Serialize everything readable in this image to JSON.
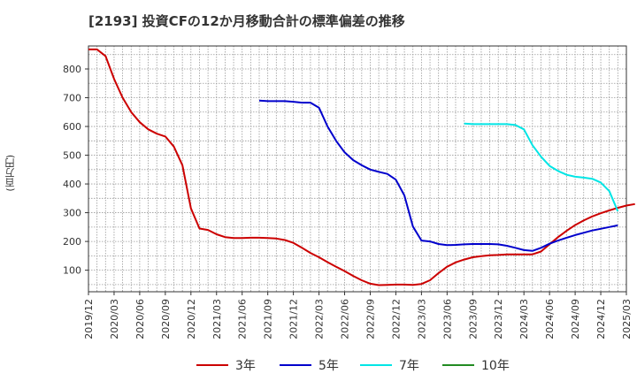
{
  "chart_data": {
    "type": "line",
    "title": "[2193]  投資CFの12か月移動合計の標準偏差の推移",
    "ylabel": "(百万円)",
    "xlabel": "",
    "ylim": [
      25,
      880
    ],
    "yticks": [
      100,
      200,
      300,
      400,
      500,
      600,
      700,
      800
    ],
    "x_ticks": [
      "2019/12",
      "2020/03",
      "2020/06",
      "2020/09",
      "2020/12",
      "2021/03",
      "2021/06",
      "2021/09",
      "2021/12",
      "2022/03",
      "2022/06",
      "2022/09",
      "2022/12",
      "2023/03",
      "2023/06",
      "2023/09",
      "2023/12",
      "2024/03",
      "2024/06",
      "2024/09",
      "2024/12",
      "2025/03"
    ],
    "grid": true,
    "legend_position": "bottom",
    "series": [
      {
        "name": "3年",
        "color": "#cc0000",
        "start_month": 0,
        "values": [
          868,
          868,
          845,
          765,
          700,
          650,
          615,
          590,
          575,
          565,
          530,
          465,
          315,
          245,
          240,
          225,
          215,
          212,
          212,
          213,
          213,
          212,
          210,
          205,
          195,
          178,
          160,
          145,
          128,
          112,
          97,
          80,
          65,
          53,
          48,
          49,
          50,
          50,
          49,
          52,
          65,
          90,
          112,
          127,
          137,
          145,
          149,
          152,
          153,
          155,
          155,
          155,
          155,
          165,
          190,
          215,
          237,
          257,
          273,
          287,
          298,
          308,
          317,
          325,
          330
        ]
      },
      {
        "name": "5年",
        "color": "#0000cc",
        "start_month": 20,
        "values": [
          690,
          688,
          688,
          688,
          686,
          683,
          683,
          665,
          600,
          550,
          510,
          483,
          465,
          450,
          442,
          435,
          415,
          360,
          252,
          203,
          200,
          191,
          187,
          188,
          190,
          191,
          191,
          191,
          190,
          185,
          178,
          170,
          167,
          178,
          192,
          203,
          213,
          222,
          230,
          238,
          244,
          250,
          256
        ]
      },
      {
        "name": "7年",
        "color": "#00e5e5",
        "start_month": 44,
        "values": [
          610,
          608,
          608,
          608,
          608,
          608,
          605,
          590,
          535,
          495,
          463,
          445,
          432,
          425,
          422,
          418,
          405,
          375,
          305
        ]
      },
      {
        "name": "10年",
        "color": "#228B22",
        "start_month": 0,
        "values": []
      }
    ]
  }
}
